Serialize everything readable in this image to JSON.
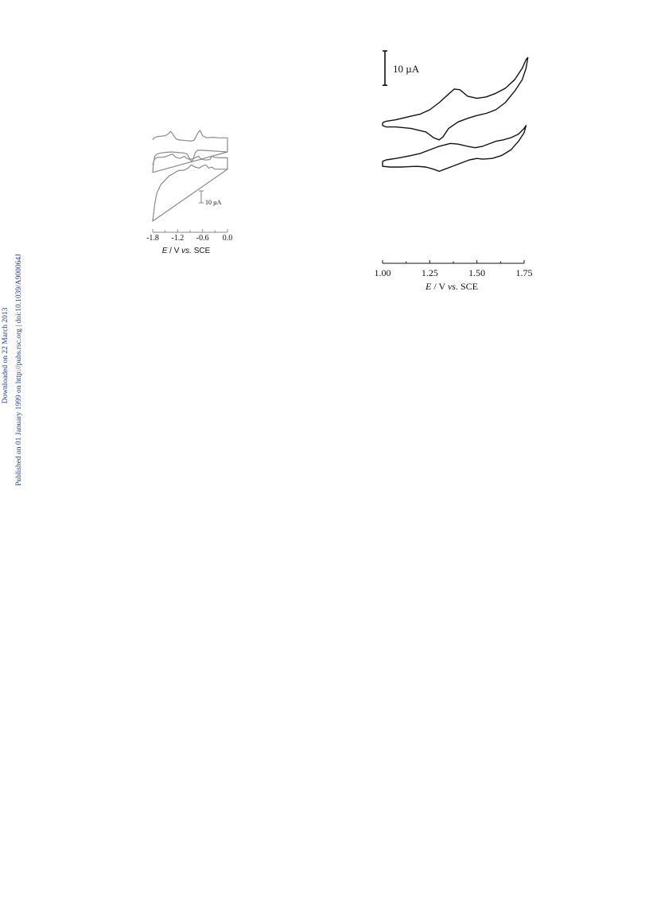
{
  "side_notes": {
    "downloaded": "Downloaded on 22 March 2013",
    "published": "Published on 01 January 1999 on http://pubs.rsc.org | doi:10.1039/A900064J"
  },
  "chart_data": [
    {
      "type": "line",
      "title": "",
      "xlabel": "E / V vs. SCE",
      "xlim": [
        -1.8,
        0.0
      ],
      "xticks": [
        "-1.8",
        "-1.2",
        "-0.6",
        "0.0"
      ],
      "scale_bar_label": "10 µA",
      "scale_bar_value_uA": 10,
      "line_color": "#8a8a8a",
      "series": [
        {
          "upper": [
            [
              -1.8,
              75
            ],
            [
              -1.77,
              77
            ],
            [
              -1.7,
              78
            ],
            [
              -1.6,
              78.5
            ],
            [
              -1.5,
              79
            ],
            [
              -1.43,
              80.5
            ],
            [
              -1.37,
              83
            ],
            [
              -1.31,
              80
            ],
            [
              -1.24,
              76
            ],
            [
              -1.15,
              75
            ],
            [
              -1.0,
              74.5
            ],
            [
              -0.88,
              74
            ],
            [
              -0.8,
              75
            ],
            [
              -0.72,
              81
            ],
            [
              -0.66,
              84
            ],
            [
              -0.6,
              79
            ],
            [
              -0.5,
              77
            ],
            [
              -0.35,
              77.5
            ],
            [
              -0.2,
              77
            ],
            [
              -0.1,
              77
            ],
            [
              0.0,
              77
            ],
            [
              0.0,
              64
            ]
          ],
          "lower": [
            [
              -1.8,
              45
            ],
            [
              -1.78,
              54
            ],
            [
              -1.75,
              60
            ],
            [
              -1.7,
              62
            ],
            [
              -1.6,
              63
            ],
            [
              -1.5,
              63.5
            ],
            [
              -1.35,
              64
            ],
            [
              -1.2,
              63.5
            ],
            [
              -1.05,
              63
            ],
            [
              -0.97,
              62
            ],
            [
              -0.9,
              57
            ],
            [
              -0.87,
              55
            ],
            [
              -0.83,
              57
            ],
            [
              -0.78,
              63
            ],
            [
              -0.72,
              65.5
            ],
            [
              -0.6,
              65.5
            ],
            [
              -0.4,
              65
            ],
            [
              -0.2,
              64.5
            ],
            [
              0.0,
              64
            ]
          ]
        },
        {
          "upper": [
            [
              -1.8,
              52
            ],
            [
              -1.76,
              57
            ],
            [
              -1.7,
              59
            ],
            [
              -1.6,
              59
            ],
            [
              -1.5,
              59.5
            ],
            [
              -1.4,
              61
            ],
            [
              -1.32,
              62
            ],
            [
              -1.24,
              59
            ],
            [
              -1.14,
              58
            ],
            [
              -1.04,
              60
            ],
            [
              -0.98,
              58
            ],
            [
              -0.9,
              57
            ],
            [
              -0.78,
              58.5
            ],
            [
              -0.7,
              60
            ],
            [
              -0.62,
              57
            ],
            [
              -0.52,
              56.5
            ],
            [
              -0.42,
              57
            ],
            [
              -0.38,
              60
            ],
            [
              -0.3,
              59
            ],
            [
              -0.2,
              58.5
            ],
            [
              -0.1,
              58.5
            ],
            [
              0.0,
              58.5
            ],
            [
              0.0,
              48
            ]
          ],
          "lower": [
            [
              -1.8,
              0
            ],
            [
              -1.78,
              6
            ],
            [
              -1.75,
              16
            ],
            [
              -1.7,
              26
            ],
            [
              -1.6,
              34
            ],
            [
              -1.5,
              38
            ],
            [
              -1.4,
              42
            ],
            [
              -1.3,
              44
            ],
            [
              -1.22,
              46
            ],
            [
              -1.15,
              47
            ],
            [
              -1.05,
              47
            ],
            [
              -0.95,
              49
            ],
            [
              -0.87,
              52
            ],
            [
              -0.78,
              50
            ],
            [
              -0.68,
              49
            ],
            [
              -0.6,
              51
            ],
            [
              -0.52,
              52
            ],
            [
              -0.45,
              49
            ],
            [
              -0.38,
              50
            ],
            [
              -0.3,
              48
            ],
            [
              -0.2,
              48
            ],
            [
              -0.1,
              48
            ],
            [
              0.0,
              48
            ]
          ]
        }
      ]
    },
    {
      "type": "line",
      "title": "",
      "xlabel": "E / V vs. SCE",
      "xlim": [
        1.0,
        1.75
      ],
      "xticks": [
        "1.00",
        "1.25",
        "1.50",
        "1.75"
      ],
      "scale_bar_label": "10 µA",
      "scale_bar_value_uA": 10,
      "line_color": "#111111",
      "series": [
        {
          "upper": [
            [
              1.0,
              86
            ],
            [
              1.02,
              87
            ],
            [
              1.07,
              88
            ],
            [
              1.15,
              90.5
            ],
            [
              1.2,
              92
            ],
            [
              1.25,
              95
            ],
            [
              1.3,
              100
            ],
            [
              1.35,
              106
            ],
            [
              1.38,
              109.5
            ],
            [
              1.41,
              109
            ],
            [
              1.45,
              104.5
            ],
            [
              1.5,
              103
            ],
            [
              1.55,
              104
            ],
            [
              1.6,
              106.5
            ],
            [
              1.65,
              110
            ],
            [
              1.7,
              116
            ],
            [
              1.74,
              124
            ],
            [
              1.76,
              130
            ],
            [
              1.77,
              131.5
            ]
          ],
          "lower": [
            [
              1.77,
              131.5
            ],
            [
              1.76,
              124
            ],
            [
              1.74,
              116
            ],
            [
              1.7,
              108
            ],
            [
              1.65,
              100
            ],
            [
              1.6,
              95
            ],
            [
              1.55,
              92.5
            ],
            [
              1.5,
              91
            ],
            [
              1.45,
              89
            ],
            [
              1.4,
              86.5
            ],
            [
              1.35,
              82
            ],
            [
              1.32,
              76
            ],
            [
              1.3,
              74
            ],
            [
              1.27,
              75.5
            ],
            [
              1.23,
              79.5
            ],
            [
              1.15,
              82
            ],
            [
              1.07,
              83
            ],
            [
              1.02,
              83
            ],
            [
              1.0,
              84
            ],
            [
              1.0,
              86
            ]
          ]
        },
        {
          "upper": [
            [
              1.0,
              59
            ],
            [
              1.02,
              60
            ],
            [
              1.07,
              61
            ],
            [
              1.15,
              63
            ],
            [
              1.2,
              64.5
            ],
            [
              1.25,
              67
            ],
            [
              1.3,
              69.5
            ],
            [
              1.36,
              71.5
            ],
            [
              1.4,
              71
            ],
            [
              1.45,
              69.5
            ],
            [
              1.49,
              68.5
            ],
            [
              1.53,
              69.5
            ],
            [
              1.6,
              73
            ],
            [
              1.64,
              74
            ],
            [
              1.68,
              75.5
            ],
            [
              1.72,
              78
            ],
            [
              1.75,
              82
            ],
            [
              1.76,
              84
            ]
          ],
          "lower": [
            [
              1.76,
              84
            ],
            [
              1.75,
              79
            ],
            [
              1.72,
              73
            ],
            [
              1.68,
              67
            ],
            [
              1.63,
              63
            ],
            [
              1.58,
              61
            ],
            [
              1.53,
              60.5
            ],
            [
              1.5,
              61
            ],
            [
              1.46,
              60
            ],
            [
              1.41,
              57.5
            ],
            [
              1.36,
              55
            ],
            [
              1.33,
              53.5
            ],
            [
              1.3,
              52
            ],
            [
              1.27,
              53.5
            ],
            [
              1.23,
              55
            ],
            [
              1.18,
              55.5
            ],
            [
              1.1,
              55
            ],
            [
              1.04,
              55
            ],
            [
              1.0,
              55.5
            ],
            [
              1.0,
              59
            ]
          ]
        }
      ]
    }
  ]
}
